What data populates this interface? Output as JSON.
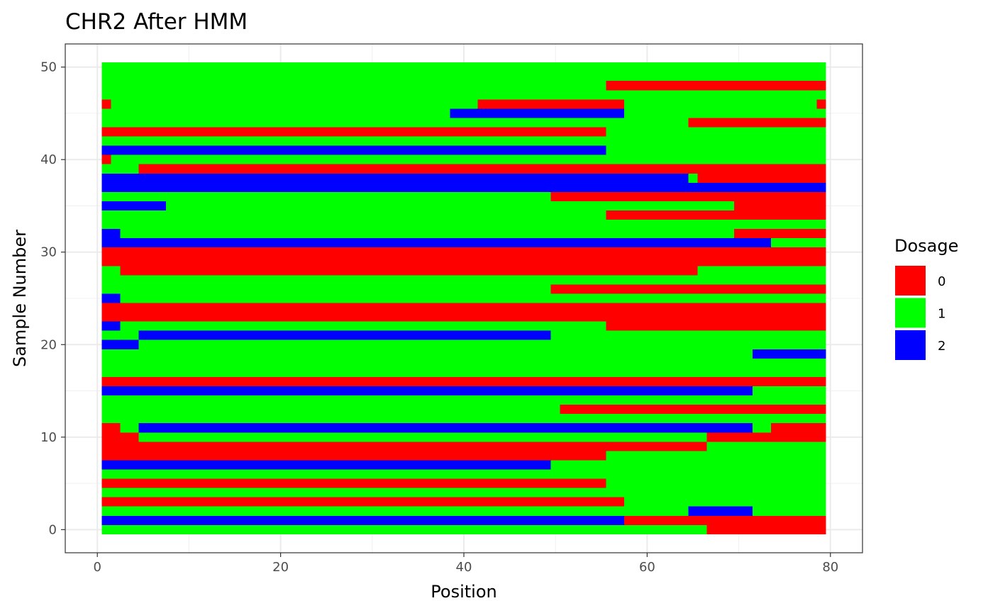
{
  "chart_data": {
    "type": "heatmap",
    "title": "CHR2 After HMM",
    "xlabel": "Position",
    "ylabel": "Sample Number",
    "xlim": [
      -3.5,
      83.5
    ],
    "ylim": [
      -2.5,
      52.5
    ],
    "x_ticks": [
      0,
      20,
      40,
      60,
      80
    ],
    "y_ticks": [
      0,
      10,
      20,
      30,
      40,
      50
    ],
    "x_range": [
      1,
      79
    ],
    "y_range": [
      0,
      50
    ],
    "grid": true,
    "legend": {
      "title": "Dosage",
      "position": "right",
      "entries": [
        {
          "value": 0,
          "label": "0",
          "color": "#ff0000"
        },
        {
          "value": 1,
          "label": "1",
          "color": "#00ff00"
        },
        {
          "value": 2,
          "label": "2",
          "color": "#0000ff"
        }
      ]
    },
    "default_value": 1,
    "segments": [
      [
        0,
        67,
        79,
        0
      ],
      [
        1,
        1,
        57,
        2
      ],
      [
        1,
        58,
        79,
        0
      ],
      [
        2,
        65,
        71,
        2
      ],
      [
        3,
        1,
        57,
        0
      ],
      [
        5,
        1,
        55,
        0
      ],
      [
        7,
        1,
        49,
        2
      ],
      [
        8,
        1,
        55,
        0
      ],
      [
        9,
        1,
        66,
        0
      ],
      [
        10,
        1,
        4,
        0
      ],
      [
        10,
        67,
        79,
        0
      ],
      [
        11,
        1,
        2,
        0
      ],
      [
        11,
        5,
        71,
        2
      ],
      [
        11,
        74,
        79,
        0
      ],
      [
        13,
        51,
        79,
        0
      ],
      [
        15,
        1,
        66,
        2
      ],
      [
        15,
        67,
        71,
        2
      ],
      [
        16,
        1,
        73,
        0
      ],
      [
        16,
        74,
        79,
        0
      ],
      [
        19,
        72,
        79,
        2
      ],
      [
        20,
        1,
        4,
        2
      ],
      [
        21,
        5,
        49,
        2
      ],
      [
        22,
        1,
        2,
        2
      ],
      [
        22,
        56,
        79,
        0
      ],
      [
        23,
        1,
        79,
        0
      ],
      [
        24,
        1,
        79,
        0
      ],
      [
        25,
        1,
        2,
        2
      ],
      [
        26,
        50,
        79,
        0
      ],
      [
        28,
        3,
        65,
        0
      ],
      [
        29,
        1,
        79,
        0
      ],
      [
        30,
        1,
        79,
        0
      ],
      [
        31,
        1,
        73,
        2
      ],
      [
        32,
        1,
        2,
        2
      ],
      [
        32,
        70,
        79,
        0
      ],
      [
        34,
        56,
        79,
        0
      ],
      [
        35,
        1,
        7,
        2
      ],
      [
        35,
        70,
        79,
        0
      ],
      [
        36,
        50,
        79,
        0
      ],
      [
        37,
        1,
        79,
        2
      ],
      [
        38,
        1,
        64,
        2
      ],
      [
        38,
        66,
        79,
        0
      ],
      [
        39,
        5,
        79,
        0
      ],
      [
        40,
        1,
        1,
        0
      ],
      [
        41,
        1,
        55,
        2
      ],
      [
        43,
        1,
        55,
        0
      ],
      [
        44,
        65,
        79,
        0
      ],
      [
        45,
        39,
        57,
        2
      ],
      [
        46,
        1,
        1,
        0
      ],
      [
        46,
        42,
        57,
        0
      ],
      [
        46,
        79,
        79,
        0
      ],
      [
        48,
        56,
        79,
        0
      ]
    ]
  }
}
